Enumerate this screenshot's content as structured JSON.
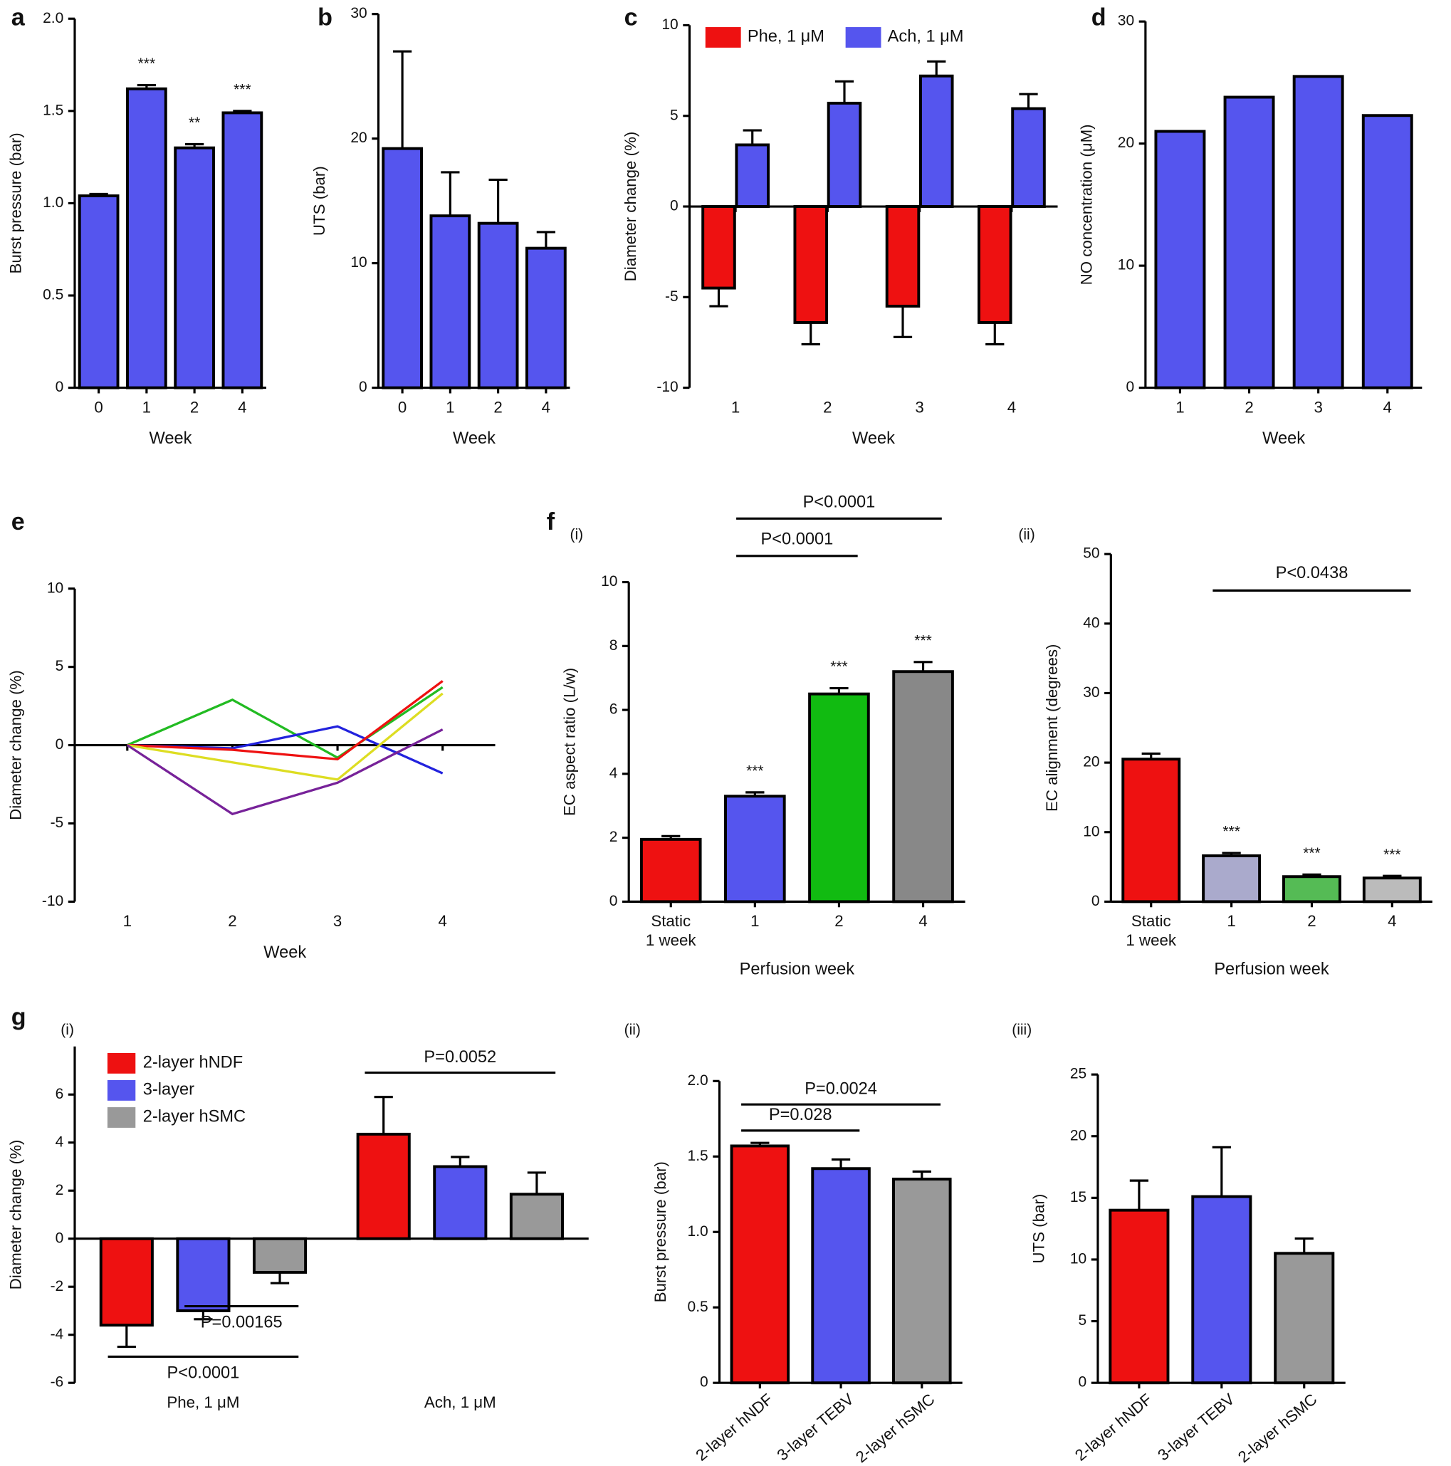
{
  "chart_data": [
    {
      "type": "bar",
      "panel": "a",
      "ylabel": "Burst pressure (bar)",
      "xlabel": "Week",
      "categories": [
        "0",
        "1",
        "2",
        "4"
      ],
      "values": [
        1.04,
        1.62,
        1.3,
        1.49
      ],
      "errors": [
        0.01,
        0.02,
        0.02,
        0.01
      ],
      "value_annotations": [
        null,
        "***",
        "**",
        "***"
      ],
      "color": "#5555ee",
      "ylim": [
        0,
        2
      ],
      "yticks": [
        0,
        0.5,
        {
          "value": 1,
          "label": "1.0"
        },
        1.5,
        {
          "value": 2,
          "label": "2.0"
        }
      ]
    },
    {
      "type": "bar",
      "panel": "b",
      "ylabel": "UTS (bar)",
      "xlabel": "Week",
      "categories": [
        "0",
        "1",
        "2",
        "4"
      ],
      "values": [
        19.2,
        13.8,
        13.2,
        11.2
      ],
      "errors": [
        7.8,
        3.5,
        3.5,
        1.3
      ],
      "color": "#5555ee",
      "ylim": [
        0,
        30
      ],
      "yticks": [
        0,
        10,
        20,
        30
      ]
    },
    {
      "type": "grouped_bar",
      "panel": "c",
      "ylabel": "Diameter change (%)",
      "xlabel": "Week",
      "categories": [
        "1",
        "2",
        "3",
        "4"
      ],
      "series": [
        {
          "name": "Phe, 1 μM",
          "color": "#ee1111",
          "values": [
            -4.5,
            -6.4,
            -5.5,
            -6.4
          ],
          "errors": [
            1,
            1.2,
            1.7,
            1.2
          ]
        },
        {
          "name": "Ach, 1 μM",
          "color": "#5555ee",
          "values": [
            3.4,
            5.7,
            7.2,
            5.4
          ],
          "errors": [
            0.8,
            1.2,
            0.8,
            0.8
          ]
        }
      ],
      "ylim": [
        -10,
        10
      ],
      "yticks": [
        -10,
        -5,
        0,
        5,
        10
      ]
    },
    {
      "type": "bar",
      "panel": "d",
      "ylabel": "NO concentration (μM)",
      "xlabel": "Week",
      "categories": [
        "1",
        "2",
        "3",
        "4"
      ],
      "values": [
        21,
        23.8,
        25.5,
        22.3
      ],
      "color": "#5555ee",
      "ylim": [
        0,
        30
      ],
      "yticks": [
        0,
        10,
        20,
        30
      ]
    },
    {
      "type": "line",
      "panel": "e",
      "ylabel": "Diameter change (%)",
      "xlabel": "Week",
      "categories": [
        "1",
        "2",
        "3",
        "4"
      ],
      "series": [
        {
          "color": "#22bb22",
          "values": [
            0,
            2.9,
            -0.8,
            3.7
          ]
        },
        {
          "color": "#2222dd",
          "values": [
            0,
            -0.2,
            1.2,
            -1.8
          ]
        },
        {
          "color": "#ee1111",
          "values": [
            0,
            -0.3,
            -0.9,
            4.1
          ]
        },
        {
          "color": "#dddd22",
          "values": [
            0,
            -1.1,
            -2.2,
            3.3
          ]
        },
        {
          "color": "#772299",
          "values": [
            0,
            -4.4,
            -2.4,
            1.0
          ]
        }
      ],
      "ylim": [
        -10,
        10
      ],
      "yticks": [
        -10,
        -5,
        0,
        5,
        10
      ]
    },
    {
      "type": "bar",
      "panel": "f",
      "subpanel": "(i)",
      "ylabel": "EC aspect ratio (L/w)",
      "xlabel": "Perfusion week",
      "categories": [
        "Static\n1 week",
        "1",
        "2",
        "4"
      ],
      "values": [
        1.95,
        3.3,
        6.5,
        7.2
      ],
      "errors": [
        0.1,
        0.12,
        0.18,
        0.3
      ],
      "value_annotations": [
        null,
        "***",
        "***",
        "***"
      ],
      "colors": [
        "#ee1111",
        "#5555ee",
        "#11bb11",
        "#888888"
      ],
      "annotations": [
        "P<0.0001",
        "P<0.0001"
      ],
      "ylim": [
        0,
        10
      ],
      "yticks": [
        0,
        2,
        4,
        6,
        8,
        10
      ]
    },
    {
      "type": "bar",
      "subpanel": "(ii)",
      "ylabel": "EC alignment (degrees)",
      "xlabel": "Perfusion week",
      "categories": [
        "Static\n1 week",
        "1",
        "2",
        "4"
      ],
      "values": [
        20.5,
        6.6,
        3.6,
        3.4
      ],
      "errors": [
        0.8,
        0.4,
        0.3,
        0.3
      ],
      "value_annotations": [
        null,
        "***",
        "***",
        "***"
      ],
      "colors": [
        "#ee1111",
        "#aaaacc",
        "#55bb55",
        "#bbbbbb"
      ],
      "annotations": [
        "P<0.0438"
      ],
      "ylim": [
        0,
        50
      ],
      "yticks": [
        0,
        10,
        20,
        30,
        40,
        50
      ]
    },
    {
      "type": "grouped_bar",
      "panel": "g",
      "subpanel": "(i)",
      "ylabel": "Diameter change (%)",
      "categories": [
        "Phe, 1 μM",
        "Ach, 1 μM"
      ],
      "series": [
        {
          "name": "2-layer hNDF",
          "color": "#ee1111",
          "values": [
            -3.6,
            4.35
          ],
          "errors": [
            0.9,
            1.55
          ]
        },
        {
          "name": "3-layer",
          "color": "#5555ee",
          "values": [
            -3.0,
            3.0
          ],
          "errors": [
            0.35,
            0.4
          ]
        },
        {
          "name": "2-layer hSMC",
          "color": "#999999",
          "values": [
            -1.4,
            1.85
          ],
          "errors": [
            0.45,
            0.9
          ]
        }
      ],
      "annotations": [
        "P=0.0052",
        "P=0.00165",
        "P<0.0001"
      ],
      "ylim": [
        -6,
        8
      ],
      "yticks": [
        -6,
        -4,
        -2,
        0,
        2,
        4,
        6
      ]
    },
    {
      "type": "bar",
      "subpanel": "(ii)",
      "ylabel": "Burst pressure (bar)",
      "categories": [
        "2-layer hNDF",
        "3-layer TEBV",
        "2-layer hSMC"
      ],
      "values": [
        1.57,
        1.42,
        1.35
      ],
      "errors": [
        0.02,
        0.06,
        0.05
      ],
      "colors": [
        "#ee1111",
        "#5555ee",
        "#999999"
      ],
      "annotations": [
        "P=0.028",
        "P=0.0024"
      ],
      "ylim": [
        0,
        2
      ],
      "yticks": [
        0,
        0.5,
        {
          "value": 1,
          "label": "1.0"
        },
        1.5,
        {
          "value": 2,
          "label": "2.0"
        }
      ]
    },
    {
      "type": "bar",
      "subpanel": "(iii)",
      "ylabel": "UTS (bar)",
      "categories": [
        "2-layer hNDF",
        "3-layer TEBV",
        "2-layer hSMC"
      ],
      "values": [
        14,
        15.1,
        10.5
      ],
      "errors": [
        2.4,
        4,
        1.2
      ],
      "colors": [
        "#ee1111",
        "#5555ee",
        "#999999"
      ],
      "ylim": [
        0,
        25
      ],
      "yticks": [
        0,
        5,
        10,
        15,
        20,
        25
      ]
    }
  ]
}
